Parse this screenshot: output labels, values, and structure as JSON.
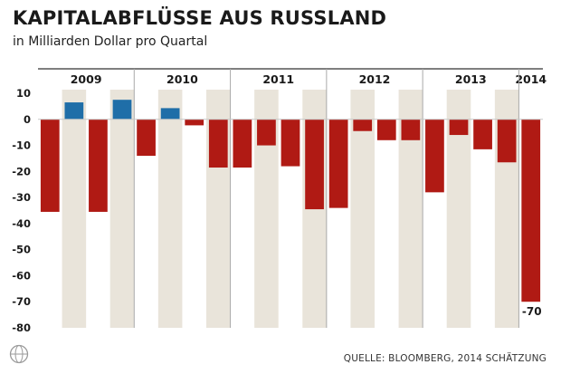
{
  "header": {
    "title": "KAPITALABFLÜSSE AUS RUSSLAND",
    "subtitle": "in Milliarden Dollar pro Quartal"
  },
  "footer": {
    "source": "QUELLE: BLOOMBERG, 2014 SCHÄTZUNG"
  },
  "colors": {
    "negative": "#b01a14",
    "positive": "#1f6ea8",
    "band": "#e9e4da",
    "axis": "#333333"
  },
  "chart_data": {
    "type": "bar",
    "title": "KAPITALABFLÜSSE AUS RUSSLAND",
    "subtitle": "in Milliarden Dollar pro Quartal",
    "xlabel": "",
    "ylabel": "",
    "ylim": [
      -80,
      10
    ],
    "yticks": [
      10,
      0,
      -10,
      -20,
      -30,
      -40,
      -50,
      -60,
      -70,
      -80
    ],
    "grid": false,
    "years": [
      {
        "label": "2009",
        "quarters": 4
      },
      {
        "label": "2010",
        "quarters": 4
      },
      {
        "label": "2011",
        "quarters": 4
      },
      {
        "label": "2012",
        "quarters": 4
      },
      {
        "label": "2013",
        "quarters": 4
      },
      {
        "label": "2014",
        "quarters": 1
      }
    ],
    "values": [
      -35.5,
      6.5,
      -35.5,
      7.5,
      -14,
      4.3,
      -2.3,
      -18.5,
      -18.5,
      -10,
      -18,
      -34.5,
      -34,
      -4.5,
      -8,
      -8,
      -28,
      -6,
      -11.5,
      -16.5,
      -70
    ],
    "annotations": [
      {
        "index": 20,
        "text": "-70"
      }
    ]
  }
}
